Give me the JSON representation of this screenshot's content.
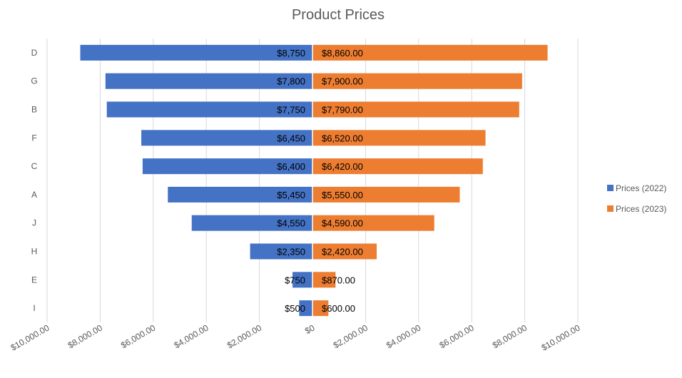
{
  "chart_data": {
    "type": "bar",
    "orientation": "horizontal-butterfly",
    "title": "Product Prices",
    "categories": [
      "D",
      "G",
      "B",
      "F",
      "C",
      "A",
      "J",
      "H",
      "E",
      "I"
    ],
    "series": [
      {
        "name": "Prices (2022)",
        "color": "#4472C4",
        "side": "left",
        "values": [
          8750,
          7800,
          7750,
          6450,
          6400,
          5450,
          4550,
          2350,
          750,
          500
        ],
        "labels": [
          "$8,750",
          "$7,800",
          "$7,750",
          "$6,450",
          "$6,400",
          "$5,450",
          "$4,550",
          "$2,350",
          "$750",
          "$500"
        ]
      },
      {
        "name": "Prices (2023)",
        "color": "#ED7D31",
        "side": "right",
        "values": [
          8860,
          7900,
          7790,
          6520,
          6420,
          5550,
          4590,
          2420,
          870,
          600
        ],
        "labels": [
          "$8,860.00",
          "$7,900.00",
          "$7,790.00",
          "$6,520.00",
          "$6,420.00",
          "$5,550.00",
          "$4,590.00",
          "$2,420.00",
          "$870.00",
          "$600.00"
        ]
      }
    ],
    "xlim": [
      -10000,
      10000
    ],
    "x_ticks": [
      -10000,
      -8000,
      -6000,
      -4000,
      -2000,
      0,
      2000,
      4000,
      6000,
      8000,
      10000
    ],
    "x_tick_labels": [
      "$10,000.00",
      "$8,000.00",
      "$6,000.00",
      "$4,000.00",
      "$2,000.00",
      "$0",
      "$2,000.00",
      "$4,000.00",
      "$6,000.00",
      "$8,000.00",
      "$10,000.00"
    ],
    "grid": true,
    "legend": "right"
  }
}
